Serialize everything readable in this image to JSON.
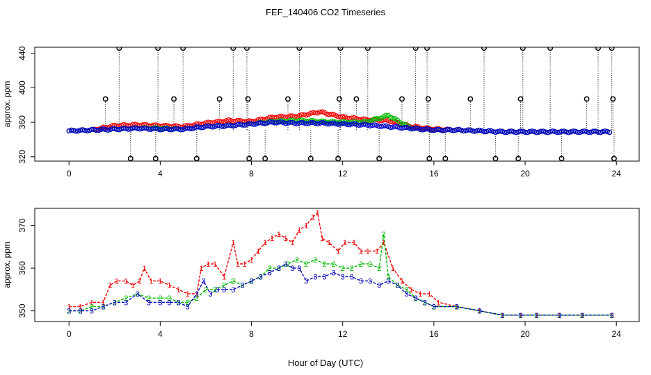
{
  "title": "FEF_140406  CO2 Timeseries",
  "xlabel": "Hour of Day (UTC)",
  "chart_data": [
    {
      "type": "scatter",
      "panel": "top",
      "ylabel": "approx. ppm",
      "xlim": [
        -1.5,
        25
      ],
      "ylim": [
        315,
        447
      ],
      "xticks": [
        0,
        4,
        8,
        12,
        16,
        20,
        24
      ],
      "yticks": [
        320,
        360,
        400,
        440
      ],
      "spikes_high": [
        [
          1.6,
          387
        ],
        [
          2.2,
          446
        ],
        [
          2.7,
          318
        ],
        [
          3.8,
          318
        ],
        [
          3.9,
          446
        ],
        [
          4.6,
          387
        ],
        [
          5.0,
          446
        ],
        [
          5.6,
          318
        ],
        [
          6.6,
          387
        ],
        [
          7.2,
          446
        ],
        [
          7.8,
          446
        ],
        [
          7.85,
          387
        ],
        [
          7.9,
          318
        ],
        [
          8.6,
          318
        ],
        [
          9.6,
          387
        ],
        [
          10.1,
          446
        ],
        [
          10.6,
          318
        ],
        [
          11.8,
          318
        ],
        [
          11.9,
          446
        ],
        [
          11.85,
          387
        ],
        [
          12.6,
          387
        ],
        [
          13.1,
          446
        ],
        [
          13.6,
          318
        ],
        [
          14.6,
          387
        ],
        [
          15.2,
          446
        ],
        [
          15.7,
          446
        ],
        [
          15.75,
          387
        ],
        [
          15.8,
          318
        ],
        [
          16.5,
          318
        ],
        [
          17.6,
          387
        ],
        [
          18.2,
          446
        ],
        [
          18.7,
          318
        ],
        [
          19.7,
          318
        ],
        [
          19.8,
          387
        ],
        [
          19.9,
          446
        ],
        [
          21.1,
          446
        ],
        [
          21.6,
          318
        ],
        [
          22.7,
          387
        ],
        [
          23.2,
          446
        ],
        [
          23.8,
          446
        ],
        [
          23.85,
          387
        ],
        [
          23.9,
          318
        ]
      ],
      "series": [
        {
          "name": "1",
          "color": "#ee0000",
          "x": [
            0,
            1,
            2,
            3,
            4,
            5,
            6,
            7,
            8,
            9,
            10,
            11,
            12,
            13,
            14,
            15,
            16,
            17,
            18,
            19,
            20,
            21,
            22,
            23,
            23.8
          ],
          "y": [
            350,
            351,
            356,
            357,
            356,
            355,
            359,
            362,
            361,
            366,
            367,
            372,
            366,
            363,
            362,
            355,
            352,
            351,
            350,
            349,
            349,
            349,
            349,
            349,
            349
          ]
        },
        {
          "name": "2",
          "color": "#00bb00",
          "x": [
            0,
            1,
            2,
            3,
            4,
            5,
            6,
            7,
            8,
            9,
            10,
            11,
            12,
            13,
            14,
            15,
            16,
            17,
            18,
            19,
            20,
            21,
            22,
            23,
            23.8
          ],
          "y": [
            350,
            351,
            352,
            353,
            353,
            352,
            355,
            356,
            358,
            361,
            362,
            361,
            360,
            360,
            368,
            353,
            351,
            351,
            350,
            349,
            349,
            349,
            349,
            349,
            349
          ]
        },
        {
          "name": "3",
          "color": "#0000cc",
          "x": [
            0,
            1,
            2,
            3,
            4,
            5,
            6,
            7,
            8,
            9,
            10,
            11,
            12,
            13,
            14,
            15,
            16,
            17,
            18,
            19,
            20,
            21,
            22,
            23,
            23.8
          ],
          "y": [
            350,
            351,
            352,
            353,
            352,
            352,
            355,
            356,
            358,
            360,
            359,
            359,
            358,
            357,
            355,
            353,
            351,
            351,
            350,
            349,
            349,
            349,
            349,
            349,
            349
          ]
        }
      ]
    },
    {
      "type": "line",
      "panel": "bottom",
      "ylabel": "approx. ppm",
      "xlim": [
        -1.5,
        25
      ],
      "ylim": [
        347.5,
        374
      ],
      "xticks": [
        0,
        4,
        8,
        12,
        16,
        20,
        24
      ],
      "yticks": [
        350,
        360,
        370
      ],
      "series": [
        {
          "name": "1",
          "marker": "1",
          "color": "#ee0000",
          "x": [
            0,
            0.5,
            1,
            1.5,
            1.8,
            2.1,
            2.5,
            2.8,
            3.1,
            3.3,
            3.6,
            4.0,
            4.4,
            4.8,
            5.2,
            5.6,
            5.8,
            6.1,
            6.4,
            6.8,
            7.2,
            7.4,
            7.7,
            8.0,
            8.3,
            8.6,
            8.9,
            9.2,
            9.5,
            9.8,
            10.1,
            10.4,
            10.7,
            10.9,
            11.1,
            11.4,
            11.8,
            12.1,
            12.5,
            12.8,
            13.1,
            13.5,
            13.8,
            14.2,
            14.6,
            15.0,
            15.4,
            15.8,
            16.2,
            17.0,
            18.0,
            19.0,
            19.8,
            20.5,
            21.5,
            22.5,
            23.8
          ],
          "y": [
            351,
            351,
            352,
            352,
            356,
            357,
            357,
            356,
            357,
            360,
            357,
            357,
            356,
            355,
            354,
            354,
            360,
            361,
            361,
            358,
            366,
            361,
            361,
            362,
            364,
            366,
            367,
            368,
            367,
            366,
            369,
            370,
            372,
            373,
            367,
            366,
            364,
            366,
            366,
            364,
            364,
            364,
            366,
            360,
            357,
            355,
            354,
            354,
            352,
            351,
            350,
            349,
            349,
            349,
            349,
            349,
            349
          ]
        },
        {
          "name": "2",
          "marker": "2",
          "color": "#00bb00",
          "x": [
            0,
            0.5,
            1,
            1.5,
            2.0,
            2.5,
            3.0,
            3.5,
            4.0,
            4.4,
            4.8,
            5.2,
            5.6,
            6.0,
            6.4,
            6.8,
            7.2,
            7.6,
            8.0,
            8.4,
            8.8,
            9.2,
            9.6,
            10.0,
            10.4,
            10.8,
            11.2,
            11.6,
            12.0,
            12.4,
            12.8,
            13.2,
            13.6,
            13.8,
            14.0,
            14.4,
            14.8,
            15.2,
            15.6,
            16.0,
            17.0,
            18.0,
            19.0,
            19.8,
            20.5,
            21.5,
            22.5,
            23.8
          ],
          "y": [
            350,
            350,
            351,
            351,
            352,
            353,
            354,
            353,
            353,
            353,
            352,
            352,
            353,
            355,
            355,
            356,
            357,
            356,
            357,
            358,
            360,
            360,
            361,
            362,
            361,
            362,
            361,
            361,
            360,
            360,
            361,
            361,
            360,
            368,
            358,
            356,
            355,
            353,
            352,
            351,
            351,
            350,
            349,
            349,
            349,
            349,
            349,
            349
          ]
        },
        {
          "name": "3",
          "marker": "3",
          "color": "#0000bb",
          "x": [
            0,
            0.5,
            1,
            1.5,
            2.0,
            2.5,
            3.0,
            3.5,
            4.0,
            4.4,
            4.8,
            5.2,
            5.6,
            5.9,
            6.2,
            6.5,
            6.8,
            7.2,
            7.6,
            8.0,
            8.4,
            8.8,
            9.2,
            9.5,
            9.8,
            10.1,
            10.4,
            10.8,
            11.2,
            11.6,
            12.0,
            12.4,
            12.8,
            13.2,
            13.6,
            14.0,
            14.4,
            14.8,
            15.2,
            15.6,
            16.0,
            17.0,
            18.0,
            19.0,
            19.8,
            20.5,
            21.5,
            22.5,
            23.8
          ],
          "y": [
            350,
            350,
            350,
            351,
            352,
            352,
            354,
            352,
            352,
            352,
            352,
            351,
            354,
            357,
            354,
            355,
            355,
            355,
            356,
            357,
            358,
            359,
            360,
            361,
            360,
            360,
            357,
            358,
            358,
            359,
            358,
            358,
            357,
            357,
            356,
            357,
            356,
            354,
            353,
            352,
            351,
            351,
            350,
            349,
            349,
            349,
            349,
            349,
            349
          ]
        }
      ]
    }
  ]
}
